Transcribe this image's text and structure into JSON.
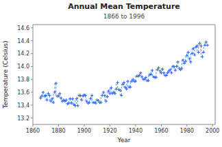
{
  "chart_data": {
    "type": "scatter",
    "title": "Annual Mean Temperature",
    "subtitle": "1866 to 1996",
    "x_label": "Year",
    "y_label": "Temperature (Celsius)",
    "color": "#2563eb",
    "marker": "plus",
    "line_style": "dashed",
    "grid": false,
    "xlim": [
      1860,
      2002
    ],
    "ylim": [
      13.1,
      14.65
    ],
    "xticks": [
      1860,
      1880,
      1900,
      1920,
      1940,
      1960,
      1980,
      2000
    ],
    "yticks": [
      13.2,
      13.4,
      13.6,
      13.8,
      {
        "value": 14,
        "label": "14.0"
      },
      14.2,
      14.4,
      14.6
    ],
    "x": [
      1866,
      1867,
      1868,
      1869,
      1870,
      1871,
      1872,
      1873,
      1874,
      1875,
      1876,
      1877,
      1878,
      1879,
      1880,
      1881,
      1882,
      1883,
      1884,
      1885,
      1886,
      1887,
      1888,
      1889,
      1890,
      1891,
      1892,
      1893,
      1894,
      1895,
      1896,
      1897,
      1898,
      1899,
      1900,
      1901,
      1902,
      1903,
      1904,
      1905,
      1906,
      1907,
      1908,
      1909,
      1910,
      1911,
      1912,
      1913,
      1914,
      1915,
      1916,
      1917,
      1918,
      1919,
      1920,
      1921,
      1922,
      1923,
      1924,
      1925,
      1926,
      1927,
      1928,
      1929,
      1930,
      1931,
      1932,
      1933,
      1934,
      1935,
      1936,
      1937,
      1938,
      1939,
      1940,
      1941,
      1942,
      1943,
      1944,
      1945,
      1946,
      1947,
      1948,
      1949,
      1950,
      1951,
      1952,
      1953,
      1954,
      1955,
      1956,
      1957,
      1958,
      1959,
      1960,
      1961,
      1962,
      1963,
      1964,
      1965,
      1966,
      1967,
      1968,
      1969,
      1970,
      1971,
      1972,
      1973,
      1974,
      1975,
      1976,
      1977,
      1978,
      1979,
      1980,
      1981,
      1982,
      1983,
      1984,
      1985,
      1986,
      1987,
      1988,
      1989,
      1990,
      1991,
      1992,
      1993,
      1994,
      1995,
      1996
    ],
    "values": [
      13.51,
      13.54,
      13.6,
      13.54,
      13.55,
      13.48,
      13.58,
      13.55,
      13.46,
      13.5,
      13.44,
      13.6,
      13.74,
      13.54,
      13.54,
      13.58,
      13.51,
      13.46,
      13.48,
      13.46,
      13.48,
      13.42,
      13.43,
      13.5,
      13.43,
      13.5,
      13.41,
      13.39,
      13.5,
      13.39,
      13.55,
      13.55,
      13.48,
      13.54,
      13.56,
      13.55,
      13.46,
      13.43,
      13.44,
      13.5,
      13.55,
      13.44,
      13.44,
      13.43,
      13.48,
      13.47,
      13.44,
      13.44,
      13.55,
      13.6,
      13.55,
      13.46,
      13.53,
      13.62,
      13.58,
      13.67,
      13.58,
      13.6,
      13.58,
      13.65,
      13.75,
      13.64,
      13.63,
      13.55,
      13.72,
      13.75,
      13.68,
      13.65,
      13.77,
      13.68,
      13.68,
      13.77,
      13.8,
      13.77,
      13.77,
      13.85,
      13.85,
      13.86,
      13.9,
      13.84,
      13.8,
      13.8,
      13.83,
      13.78,
      13.78,
      13.87,
      13.88,
      13.94,
      13.84,
      13.83,
      13.83,
      13.95,
      13.98,
      13.93,
      13.9,
      13.96,
      13.9,
      13.86,
      13.86,
      13.9,
      13.93,
      13.95,
      13.9,
      14.0,
      14.0,
      13.94,
      14.0,
      14.07,
      13.97,
      13.95,
      13.97,
      14.1,
      14.05,
      14.08,
      14.17,
      14.22,
      14.12,
      14.07,
      14.2,
      14.28,
      14.18,
      14.3,
      14.32,
      14.22,
      14.36,
      14.32,
      14.15,
      14.22,
      14.33,
      14.38,
      14.33
    ]
  }
}
